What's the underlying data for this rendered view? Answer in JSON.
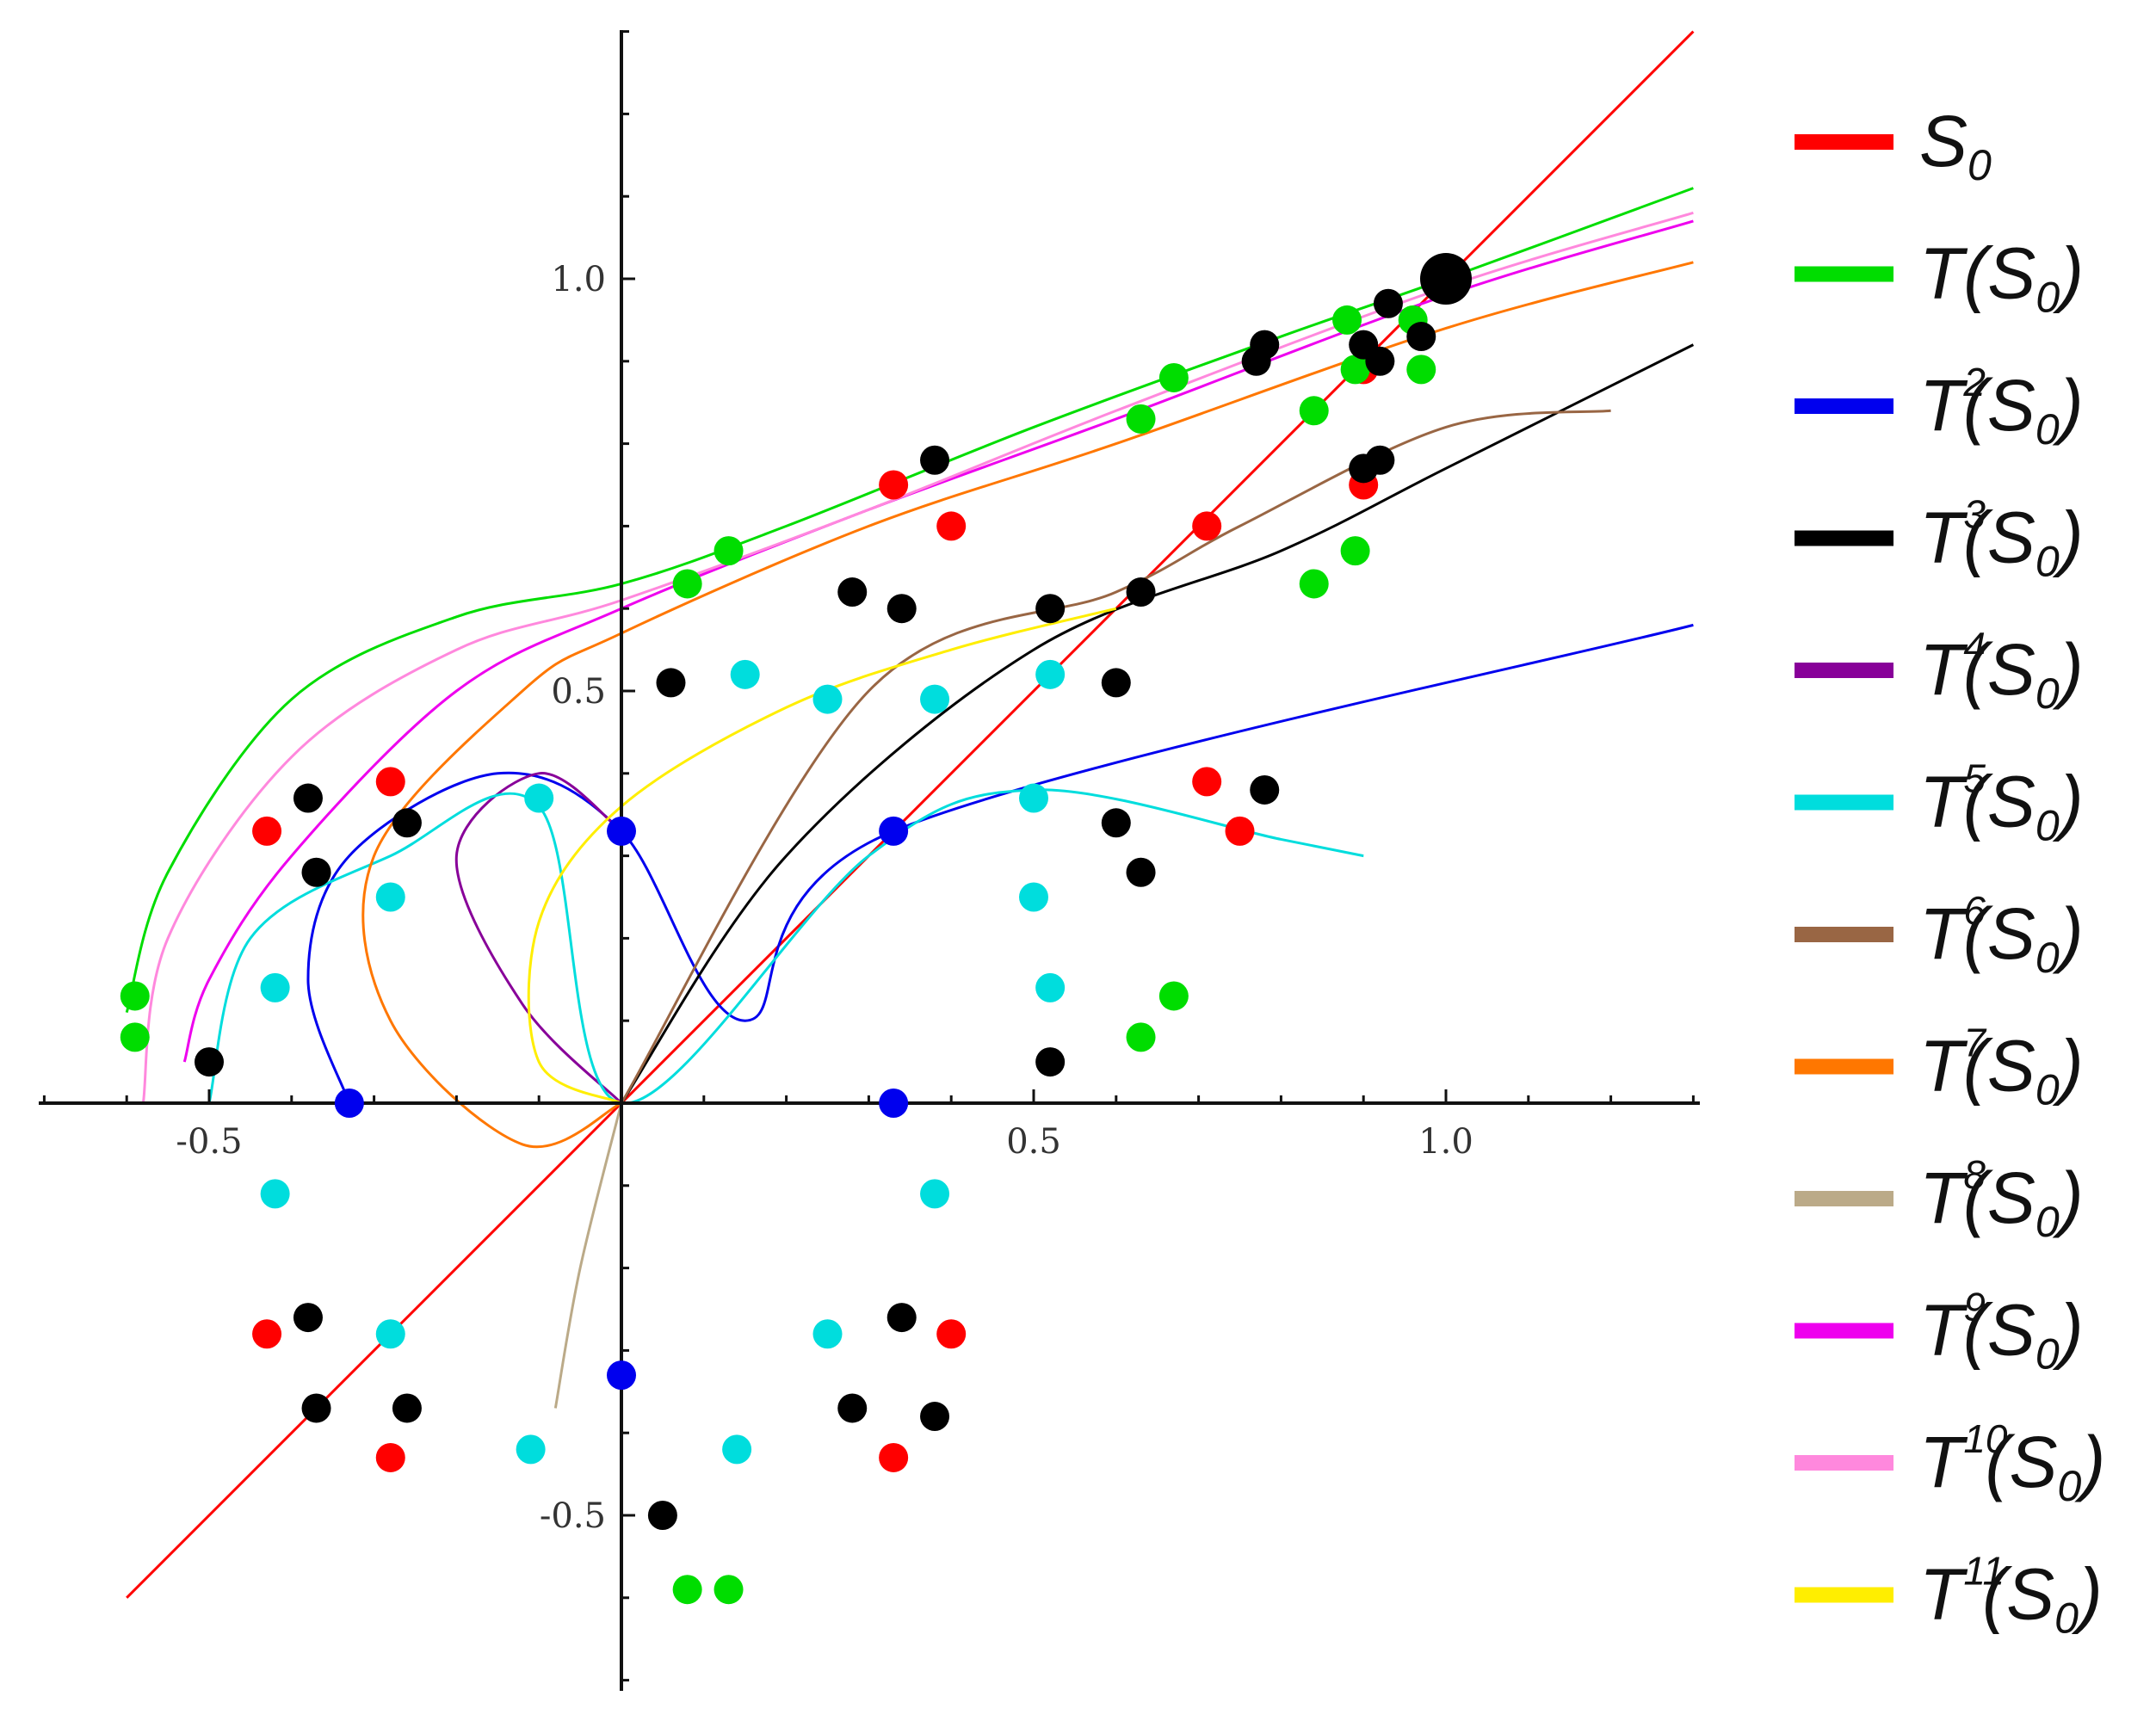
{
  "chart_data": {
    "type": "line",
    "title": "",
    "xlabel": "",
    "ylabel": "",
    "xlim": [
      -0.7,
      1.3
    ],
    "ylim": [
      -0.7,
      1.3
    ],
    "x_ticks": [
      {
        "value": -0.5,
        "label": "-0.5"
      },
      {
        "value": 0.5,
        "label": "0.5"
      },
      {
        "value": 1.0,
        "label": "1.0"
      }
    ],
    "y_ticks": [
      {
        "value": 1.0,
        "label": "1.0"
      },
      {
        "value": 0.5,
        "label": "0.5"
      },
      {
        "value": -0.5,
        "label": "-0.5"
      }
    ],
    "grid": false,
    "legend_position": "right",
    "series": [
      {
        "key": "s0",
        "label": "S",
        "sub": "0",
        "sup": "",
        "color": "#ff0000",
        "points": [
          [
            -0.6,
            -0.6
          ],
          [
            0.0,
            0.0
          ],
          [
            1.0,
            1.0
          ],
          [
            1.3,
            1.3
          ]
        ],
        "markers": [
          [
            -0.43,
            0.33
          ],
          [
            -0.28,
            0.39
          ],
          [
            0.33,
            0.75
          ],
          [
            0.4,
            0.7
          ],
          [
            0.71,
            0.7
          ],
          [
            0.75,
            0.33
          ],
          [
            0.9,
            0.89
          ],
          [
            0.9,
            0.75
          ],
          [
            0.71,
            0.39
          ],
          [
            0.4,
            -0.28
          ],
          [
            0.33,
            -0.43
          ],
          [
            -0.43,
            -0.28
          ],
          [
            -0.28,
            -0.43
          ]
        ]
      },
      {
        "key": "t1",
        "label": "T(S",
        "sub": "0",
        "sup": "",
        "color": "#00dd00",
        "points": [
          [
            -0.6,
            0.11
          ],
          [
            -0.55,
            0.28
          ],
          [
            -0.4,
            0.49
          ],
          [
            -0.2,
            0.59
          ],
          [
            0.0,
            0.63
          ],
          [
            0.2,
            0.7
          ],
          [
            0.5,
            0.82
          ],
          [
            0.8,
            0.93
          ],
          [
            1.0,
            1.0
          ],
          [
            1.3,
            1.11
          ]
        ],
        "markers": [
          [
            -0.59,
            0.13
          ],
          [
            -0.59,
            0.08
          ],
          [
            0.08,
            0.63
          ],
          [
            0.13,
            0.67
          ],
          [
            0.63,
            0.83
          ],
          [
            0.67,
            0.88
          ],
          [
            0.84,
            0.84
          ],
          [
            0.89,
            0.89
          ],
          [
            0.84,
            0.63
          ],
          [
            0.89,
            0.67
          ],
          [
            0.96,
            0.95
          ],
          [
            0.97,
            0.89
          ],
          [
            0.88,
            0.95
          ],
          [
            0.63,
            0.08
          ],
          [
            0.67,
            0.13
          ],
          [
            0.08,
            -0.59
          ],
          [
            0.13,
            -0.59
          ]
        ]
      },
      {
        "key": "t2",
        "label": "T",
        "sub": "0",
        "sup": "2",
        "color": "#0000ee",
        "points": [
          [
            -0.33,
            0.0
          ],
          [
            -0.38,
            0.15
          ],
          [
            -0.33,
            0.3
          ],
          [
            -0.15,
            0.4
          ],
          [
            0.0,
            0.33
          ],
          [
            0.15,
            0.1
          ],
          [
            0.33,
            0.33
          ],
          [
            1.3,
            0.58
          ]
        ],
        "markers": [
          [
            0.0,
            0.33
          ],
          [
            -0.33,
            0.0
          ],
          [
            0.33,
            0.33
          ],
          [
            0.33,
            0.0
          ],
          [
            0.0,
            -0.33
          ]
        ]
      },
      {
        "key": "t3",
        "label": "T",
        "sub": "0",
        "sup": "3",
        "color": "#000000",
        "points": [
          [
            0.0,
            0.0
          ],
          [
            0.2,
            0.3
          ],
          [
            0.5,
            0.55
          ],
          [
            0.8,
            0.67
          ],
          [
            1.0,
            0.77
          ],
          [
            1.3,
            0.92
          ]
        ],
        "markers": [
          [
            -0.38,
            0.37
          ],
          [
            -0.26,
            0.34
          ],
          [
            -0.37,
            0.28
          ],
          [
            -0.5,
            0.05
          ],
          [
            0.06,
            0.51
          ],
          [
            0.28,
            0.62
          ],
          [
            0.34,
            0.6
          ],
          [
            0.52,
            0.6
          ],
          [
            0.63,
            0.62
          ],
          [
            0.6,
            0.51
          ],
          [
            0.6,
            0.34
          ],
          [
            0.63,
            0.28
          ],
          [
            0.52,
            0.05
          ],
          [
            0.38,
            0.78
          ],
          [
            0.78,
            0.38
          ],
          [
            0.93,
            0.97
          ],
          [
            0.97,
            0.93
          ],
          [
            0.9,
            0.92
          ],
          [
            0.92,
            0.9
          ],
          [
            0.9,
            0.77
          ],
          [
            0.92,
            0.78
          ],
          [
            0.77,
            0.9
          ],
          [
            0.78,
            0.92
          ],
          [
            0.34,
            -0.26
          ],
          [
            0.28,
            -0.37
          ],
          [
            0.38,
            -0.38
          ],
          [
            -0.37,
            -0.37
          ],
          [
            -0.38,
            -0.26
          ],
          [
            -0.26,
            -0.37
          ],
          [
            0.05,
            -0.5
          ],
          [
            1.0,
            1.0
          ]
        ]
      },
      {
        "key": "t4",
        "label": "T",
        "sub": "0",
        "sup": "4",
        "color": "#880099",
        "points": [
          [
            0.0,
            0.0
          ],
          [
            -0.12,
            0.12
          ],
          [
            -0.2,
            0.3
          ],
          [
            -0.1,
            0.4
          ],
          [
            0.0,
            0.33
          ]
        ]
      },
      {
        "key": "t5",
        "label": "T",
        "sub": "0",
        "sup": "5",
        "color": "#00dddd",
        "points": [
          [
            -0.5,
            0.0
          ],
          [
            -0.45,
            0.2
          ],
          [
            -0.28,
            0.3
          ],
          [
            -0.1,
            0.36
          ],
          [
            0.0,
            0.0
          ],
          [
            0.3,
            0.3
          ],
          [
            0.5,
            0.38
          ],
          [
            0.8,
            0.32
          ],
          [
            0.9,
            0.3
          ]
        ],
        "markers": [
          [
            -0.1,
            0.37
          ],
          [
            -0.28,
            0.25
          ],
          [
            -0.42,
            0.14
          ],
          [
            -0.42,
            -0.11
          ],
          [
            0.15,
            0.52
          ],
          [
            0.25,
            0.49
          ],
          [
            0.38,
            0.49
          ],
          [
            0.52,
            0.52
          ],
          [
            0.5,
            0.37
          ],
          [
            0.5,
            0.25
          ],
          [
            0.52,
            0.14
          ],
          [
            0.38,
            -0.11
          ],
          [
            0.25,
            -0.28
          ],
          [
            0.14,
            -0.42
          ],
          [
            -0.11,
            -0.42
          ],
          [
            -0.28,
            -0.28
          ]
        ]
      },
      {
        "key": "t6",
        "label": "T",
        "sub": "0",
        "sup": "6",
        "color": "#996644",
        "points": [
          [
            0.0,
            0.0
          ],
          [
            0.3,
            0.5
          ],
          [
            0.6,
            0.62
          ],
          [
            0.75,
            0.7
          ],
          [
            1.0,
            0.82
          ],
          [
            1.2,
            0.84
          ]
        ]
      },
      {
        "key": "t7",
        "label": "T",
        "sub": "0",
        "sup": "7",
        "color": "#ff7700",
        "points": [
          [
            0.0,
            0.0
          ],
          [
            -0.12,
            -0.05
          ],
          [
            -0.28,
            0.1
          ],
          [
            -0.3,
            0.3
          ],
          [
            -0.12,
            0.5
          ],
          [
            0.0,
            0.57
          ],
          [
            0.3,
            0.7
          ],
          [
            0.6,
            0.8
          ],
          [
            1.0,
            0.94
          ],
          [
            1.3,
            1.02
          ]
        ]
      },
      {
        "key": "t8",
        "label": "T",
        "sub": "0",
        "sup": "8",
        "color": "#bbaa88",
        "points": [
          [
            0.0,
            0.0
          ],
          [
            -0.05,
            -0.2
          ],
          [
            -0.08,
            -0.37
          ]
        ]
      },
      {
        "key": "t9",
        "label": "T",
        "sub": "0",
        "sup": "9",
        "color": "#ee00ee",
        "points": [
          [
            -0.53,
            0.05
          ],
          [
            -0.5,
            0.15
          ],
          [
            -0.4,
            0.3
          ],
          [
            -0.2,
            0.5
          ],
          [
            0.0,
            0.6
          ],
          [
            0.3,
            0.72
          ],
          [
            0.6,
            0.83
          ],
          [
            1.0,
            0.98
          ],
          [
            1.3,
            1.07
          ]
        ]
      },
      {
        "key": "t10",
        "label": "T",
        "sub": "0",
        "sup": "10",
        "color": "#ff88dd",
        "points": [
          [
            -0.58,
            0.0
          ],
          [
            -0.55,
            0.2
          ],
          [
            -0.4,
            0.42
          ],
          [
            -0.2,
            0.55
          ],
          [
            0.0,
            0.61
          ],
          [
            0.3,
            0.72
          ],
          [
            0.6,
            0.84
          ],
          [
            1.0,
            0.99
          ],
          [
            1.3,
            1.08
          ]
        ]
      },
      {
        "key": "t11",
        "label": "T",
        "sub": "0",
        "sup": "11",
        "color": "#ffee00",
        "points": [
          [
            0.0,
            0.0
          ],
          [
            -0.1,
            0.05
          ],
          [
            -0.1,
            0.22
          ],
          [
            0.0,
            0.36
          ],
          [
            0.2,
            0.48
          ],
          [
            0.4,
            0.55
          ],
          [
            0.6,
            0.6
          ]
        ]
      }
    ]
  }
}
